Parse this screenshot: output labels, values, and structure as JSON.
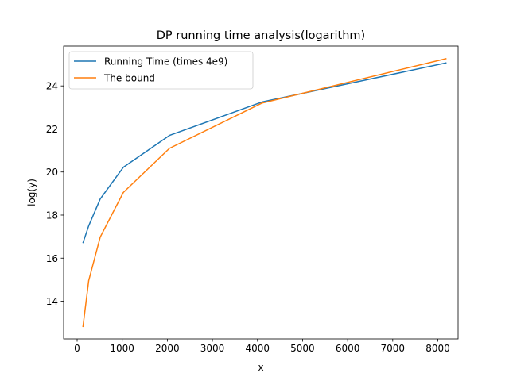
{
  "chart_data": {
    "type": "line",
    "title": "DP running time analysis(logarithm)",
    "xlabel": "x",
    "ylabel": "log(y)",
    "xlim": [
      -300,
      8450
    ],
    "ylim": [
      12.25,
      25.85
    ],
    "xticks": [
      0,
      1000,
      2000,
      3000,
      4000,
      5000,
      6000,
      7000,
      8000
    ],
    "yticks": [
      14,
      16,
      18,
      20,
      22,
      24
    ],
    "grid": false,
    "legend_position": "top-left",
    "series": [
      {
        "name": "Running Time (times 4e9)",
        "color": "#1f77b4",
        "x": [
          128,
          256,
          512,
          1024,
          2048,
          4096,
          8192
        ],
        "y": [
          16.7,
          17.5,
          18.75,
          20.22,
          21.7,
          23.25,
          25.07
        ]
      },
      {
        "name": "The bound",
        "color": "#ff7f0e",
        "x": [
          128,
          256,
          512,
          1024,
          2048,
          4096,
          8192
        ],
        "y": [
          12.8,
          14.95,
          16.98,
          19.05,
          21.1,
          23.2,
          25.27
        ]
      }
    ]
  }
}
